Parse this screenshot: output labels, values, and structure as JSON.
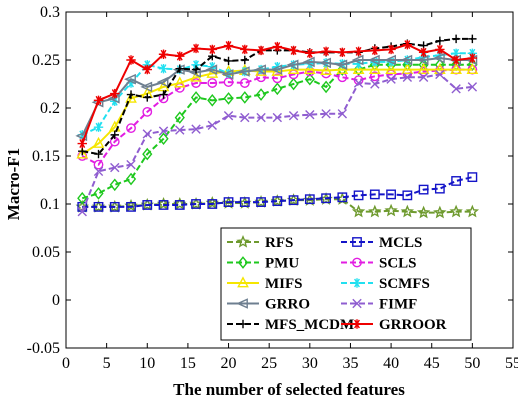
{
  "chart_data": {
    "type": "line",
    "title": "",
    "xlabel": "The number of selected features",
    "ylabel": "Macro-F1",
    "xlim": [
      0,
      55
    ],
    "ylim": [
      -0.05,
      0.3
    ],
    "xticks": [
      "0",
      "5",
      "10",
      "15",
      "20",
      "25",
      "30",
      "35",
      "40",
      "45",
      "50",
      "55"
    ],
    "yticks": [
      "-0.05",
      "0",
      "0.05",
      "0.1",
      "0.15",
      "0.2",
      "0.25",
      "0.3"
    ],
    "grid": false,
    "legend_position": "bottom-right",
    "x": [
      2,
      4,
      6,
      8,
      10,
      12,
      14,
      16,
      18,
      20,
      22,
      24,
      26,
      28,
      30,
      32,
      34,
      36,
      38,
      40,
      42,
      44,
      46,
      48,
      50
    ],
    "series": [
      {
        "name": "RFS",
        "color": "#6e9a2e",
        "dash": "6,3",
        "marker": "star",
        "values": [
          0.097,
          0.097,
          0.097,
          0.098,
          0.099,
          0.1,
          0.1,
          0.1,
          0.101,
          0.101,
          0.101,
          0.102,
          0.103,
          0.104,
          0.104,
          0.105,
          0.105,
          0.092,
          0.092,
          0.093,
          0.092,
          0.091,
          0.091,
          0.092,
          0.092
        ]
      },
      {
        "name": "MCLS",
        "color": "#1414c8",
        "dash": "6,3",
        "marker": "square",
        "values": [
          0.097,
          0.097,
          0.097,
          0.097,
          0.099,
          0.099,
          0.099,
          0.1,
          0.1,
          0.102,
          0.102,
          0.102,
          0.103,
          0.104,
          0.105,
          0.106,
          0.107,
          0.109,
          0.11,
          0.11,
          0.109,
          0.115,
          0.116,
          0.124,
          0.128
        ]
      },
      {
        "name": "PMU",
        "color": "#1ec81e",
        "dash": "6,3",
        "marker": "diamond",
        "values": [
          0.106,
          0.111,
          0.12,
          0.126,
          0.152,
          0.168,
          0.19,
          0.211,
          0.208,
          0.21,
          0.211,
          0.214,
          0.22,
          0.225,
          0.23,
          0.222,
          0.24,
          0.24,
          0.245,
          0.245,
          0.245,
          0.245,
          0.245,
          0.245,
          0.245
        ]
      },
      {
        "name": "SCLS",
        "color": "#e21ee2",
        "dash": "6,3",
        "marker": "circle",
        "values": [
          0.15,
          0.141,
          0.165,
          0.179,
          0.196,
          0.21,
          0.221,
          0.226,
          0.226,
          0.227,
          0.226,
          0.232,
          0.231,
          0.235,
          0.238,
          0.236,
          0.232,
          0.229,
          0.233,
          0.235,
          0.236,
          0.238,
          0.239,
          0.24,
          0.24
        ]
      },
      {
        "name": "MIFS",
        "color": "#f5e600",
        "dash": "",
        "marker": "triangle",
        "values": [
          0.152,
          0.163,
          0.18,
          0.21,
          0.215,
          0.222,
          0.226,
          0.232,
          0.236,
          0.238,
          0.239,
          0.238,
          0.238,
          0.24,
          0.24,
          0.239,
          0.24,
          0.24,
          0.24,
          0.24,
          0.24,
          0.24,
          0.24,
          0.24,
          0.24
        ]
      },
      {
        "name": "SCMFS",
        "color": "#22e0f0",
        "dash": "6,3",
        "marker": "asterisk",
        "values": [
          0.172,
          0.18,
          0.207,
          0.226,
          0.245,
          0.241,
          0.24,
          0.245,
          0.243,
          0.236,
          0.238,
          0.24,
          0.243,
          0.245,
          0.246,
          0.247,
          0.246,
          0.246,
          0.248,
          0.248,
          0.25,
          0.253,
          0.255,
          0.257,
          0.257
        ]
      },
      {
        "name": "GRRO",
        "color": "#6e7f90",
        "dash": "",
        "marker": "triangle-left",
        "values": [
          0.171,
          0.206,
          0.21,
          0.23,
          0.222,
          0.227,
          0.24,
          0.237,
          0.24,
          0.235,
          0.238,
          0.24,
          0.24,
          0.245,
          0.248,
          0.247,
          0.245,
          0.25,
          0.25,
          0.25,
          0.25,
          0.25,
          0.252,
          0.25,
          0.25
        ]
      },
      {
        "name": "FIMF",
        "color": "#8f5dd0",
        "dash": "6,3",
        "marker": "x",
        "values": [
          0.092,
          0.134,
          0.138,
          0.141,
          0.173,
          0.176,
          0.177,
          0.178,
          0.182,
          0.192,
          0.19,
          0.19,
          0.19,
          0.192,
          0.193,
          0.194,
          0.194,
          0.226,
          0.225,
          0.23,
          0.232,
          0.232,
          0.235,
          0.22,
          0.222
        ]
      },
      {
        "name": "MFS_MCDM",
        "color": "#000000",
        "dash": "6,3",
        "marker": "plus",
        "values": [
          0.155,
          0.152,
          0.172,
          0.214,
          0.211,
          0.214,
          0.241,
          0.24,
          0.254,
          0.249,
          0.25,
          0.26,
          0.26,
          0.26,
          0.258,
          0.258,
          0.258,
          0.258,
          0.262,
          0.264,
          0.267,
          0.265,
          0.27,
          0.272,
          0.272
        ]
      },
      {
        "name": "GRROOR",
        "color": "#ee0000",
        "dash": "",
        "marker": "asterisk",
        "values": [
          0.163,
          0.208,
          0.215,
          0.25,
          0.24,
          0.256,
          0.254,
          0.262,
          0.261,
          0.265,
          0.261,
          0.26,
          0.264,
          0.26,
          0.257,
          0.259,
          0.258,
          0.259,
          0.26,
          0.261,
          0.266,
          0.258,
          0.261,
          0.25,
          0.252
        ]
      }
    ]
  }
}
